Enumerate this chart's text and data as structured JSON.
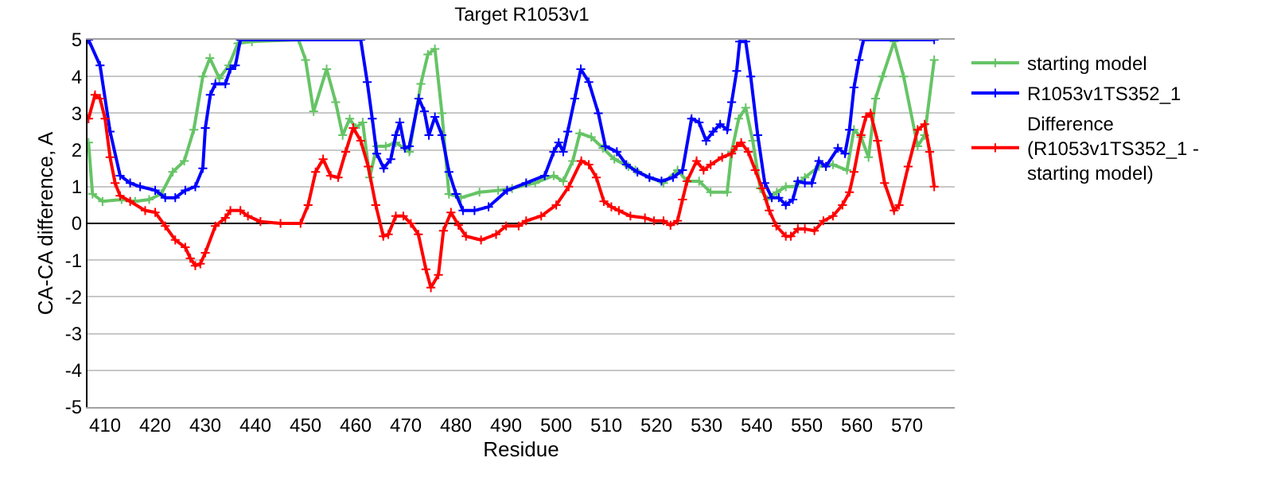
{
  "chart_data": {
    "type": "line",
    "title": "Target R1053v1",
    "xlabel": "Residue",
    "ylabel": "CA-CA difference, A",
    "xlim": [
      406.5,
      579.5
    ],
    "xticks": [
      410,
      420,
      430,
      440,
      450,
      460,
      470,
      480,
      490,
      500,
      510,
      520,
      530,
      540,
      550,
      560,
      570
    ],
    "ylim": [
      -5,
      5
    ],
    "yticks": [
      -5,
      -4,
      -3,
      -2,
      -1,
      0,
      1,
      2,
      3,
      4,
      5
    ],
    "grid": "y",
    "legend": "right",
    "marker": "cross",
    "line_style": "solid",
    "series": [
      {
        "name": "starting model",
        "color": "#66c466",
        "x": [
          406.7,
          407.5,
          409.5,
          413.3,
          416,
          418.8,
          421.2,
          423.5,
          425.8,
          427.7,
          429.5,
          430.9,
          432.8,
          434.7,
          436.5,
          439.3,
          448.6,
          450,
          451.6,
          454.2,
          456,
          457.4,
          458.8,
          460,
          461.4,
          462.8,
          464.2,
          466,
          468,
          470.7,
          473,
          474.4,
          475.8,
          477.2,
          478.6,
          481,
          484.7,
          488.4,
          491.2,
          495.8,
          499.5,
          501.4,
          503.3,
          504.7,
          507,
          509.3,
          511.6,
          514.4,
          515.8,
          518.6,
          521.4,
          524.2,
          526.1,
          528.5,
          530.8,
          534.1,
          535,
          536.4,
          537.8,
          539.2,
          540.7,
          542.1,
          544,
          545.8,
          547.7,
          549.6,
          552.4,
          555.2,
          558,
          559.4,
          560.8,
          562.3,
          563.7,
          565.1,
          567.4,
          569.3,
          572.1,
          573.5,
          575.4
        ],
        "values": [
          2.2,
          0.8,
          0.6,
          0.65,
          0.6,
          0.65,
          0.8,
          1.4,
          1.7,
          2.55,
          4.0,
          4.5,
          3.95,
          4.3,
          4.9,
          4.95,
          5.0,
          4.45,
          3.05,
          4.2,
          3.3,
          2.4,
          2.85,
          2.6,
          2.75,
          1.25,
          2.1,
          2.1,
          2.2,
          1.95,
          3.8,
          4.6,
          4.75,
          3.0,
          0.8,
          0.7,
          0.85,
          0.9,
          0.95,
          1.1,
          1.3,
          1.15,
          1.7,
          2.45,
          2.35,
          2.05,
          1.75,
          1.55,
          1.45,
          1.25,
          1.1,
          1.45,
          1.15,
          1.15,
          0.85,
          0.85,
          1.95,
          2.85,
          3.15,
          2.25,
          0.95,
          0.65,
          0.85,
          1.0,
          1.0,
          1.25,
          1.55,
          1.6,
          1.45,
          2.55,
          2.35,
          1.8,
          3.4,
          4.0,
          4.95,
          4.0,
          2.1,
          2.4,
          4.45
        ]
      },
      {
        "name": "R1053v1TS352_1",
        "color": "#0000ff",
        "x": [
          406.7,
          409,
          411,
          413,
          415,
          417,
          420,
          422,
          424,
          426,
          428,
          429.5,
          430,
          431,
          432,
          434,
          435,
          436,
          437,
          461,
          462.3,
          463.3,
          464.2,
          465.6,
          467,
          468,
          468.8,
          469.8,
          470.7,
          472.6,
          473.7,
          474.6,
          475.8,
          477.2,
          478.6,
          480,
          481.4,
          483.7,
          486.5,
          490.2,
          494,
          497.7,
          499.5,
          500.5,
          501.4,
          502.3,
          503.7,
          504.9,
          506.5,
          508.4,
          509.8,
          512.1,
          514,
          516.2,
          518.6,
          521,
          523.3,
          525.2,
          527,
          528.5,
          529.9,
          531.3,
          532.7,
          534.1,
          535,
          536,
          536.6,
          537.8,
          538.8,
          540.2,
          541.6,
          543,
          544.4,
          545.8,
          547.2,
          548.2,
          549.6,
          551,
          552.4,
          553.8,
          556.2,
          557.6,
          558.5,
          559.4,
          560.4,
          561.3,
          575.4
        ],
        "values": [
          5.0,
          4.3,
          2.5,
          1.3,
          1.1,
          1.0,
          0.9,
          0.7,
          0.7,
          0.9,
          1.0,
          1.5,
          2.6,
          3.5,
          3.8,
          3.8,
          4.2,
          4.3,
          5.0,
          5.0,
          3.85,
          2.85,
          1.9,
          1.5,
          1.75,
          2.4,
          2.75,
          2.05,
          2.1,
          3.4,
          3.05,
          2.4,
          2.9,
          2.4,
          1.4,
          0.8,
          0.35,
          0.35,
          0.45,
          0.9,
          1.1,
          1.3,
          1.95,
          2.2,
          1.95,
          2.5,
          3.4,
          4.2,
          3.85,
          3.0,
          2.1,
          1.95,
          1.6,
          1.4,
          1.25,
          1.15,
          1.25,
          1.45,
          2.85,
          2.75,
          2.25,
          2.5,
          2.7,
          2.55,
          3.3,
          4.15,
          4.95,
          4.95,
          4.0,
          2.4,
          1.1,
          0.7,
          0.7,
          0.5,
          0.65,
          1.15,
          1.1,
          1.1,
          1.7,
          1.55,
          2.05,
          1.9,
          2.55,
          3.7,
          4.45,
          5.0,
          5.0
        ]
      },
      {
        "name": "Difference\n(R1053v1TS352_1 -\nstarting model)",
        "color": "#ff0000",
        "x": [
          406.7,
          408,
          409,
          410,
          411,
          412,
          413,
          415,
          418,
          420,
          422,
          424,
          426,
          427,
          428,
          429,
          430,
          432,
          434,
          435,
          437,
          438.5,
          441,
          445,
          449,
          450.5,
          452,
          453.5,
          455,
          456.5,
          458,
          459.5,
          461,
          462.5,
          464,
          465.5,
          466.5,
          468,
          469.5,
          471,
          472.5,
          474,
          475,
          476.5,
          477.5,
          479,
          480.5,
          482,
          485,
          488,
          490,
          492.5,
          494,
          497,
          500,
          502.5,
          505,
          506.5,
          508,
          509.5,
          511,
          512.5,
          514.8,
          517.7,
          519.5,
          521.4,
          522.8,
          524.2,
          525.2,
          526.1,
          528,
          529.4,
          530.8,
          533.1,
          535,
          536,
          536.9,
          538.3,
          539.7,
          541.1,
          542.5,
          543.9,
          545.8,
          546.8,
          548.2,
          549.6,
          551.5,
          553.3,
          555.2,
          557.1,
          558.5,
          559.4,
          560.8,
          561.8,
          562.7,
          564.1,
          565.5,
          567.4,
          568.4,
          570.2,
          572.1,
          573.5,
          574.5,
          575.4
        ],
        "values": [
          2.85,
          3.5,
          3.4,
          2.85,
          1.8,
          1.1,
          0.75,
          0.6,
          0.35,
          0.3,
          -0.07,
          -0.45,
          -0.65,
          -0.95,
          -1.15,
          -1.1,
          -0.8,
          -0.07,
          0.15,
          0.35,
          0.35,
          0.2,
          0.05,
          0,
          0,
          0.5,
          1.4,
          1.75,
          1.3,
          1.25,
          1.95,
          2.6,
          2.25,
          1.55,
          0.5,
          -0.35,
          -0.3,
          0.2,
          0.2,
          0,
          -0.3,
          -1.25,
          -1.75,
          -1.4,
          -0.2,
          0.3,
          -0.05,
          -0.35,
          -0.45,
          -0.3,
          -0.07,
          -0.07,
          0.07,
          0.2,
          0.5,
          1.0,
          1.7,
          1.6,
          1.25,
          0.6,
          0.45,
          0.35,
          0.2,
          0.15,
          0.07,
          0.07,
          -0.05,
          0.07,
          0.65,
          1.15,
          1.7,
          1.45,
          1.6,
          1.8,
          1.9,
          2.1,
          2.2,
          1.95,
          1.45,
          0.95,
          0.35,
          -0.07,
          -0.35,
          -0.35,
          -0.15,
          -0.15,
          -0.2,
          0.07,
          0.2,
          0.5,
          0.85,
          1.4,
          2.4,
          2.9,
          3.0,
          2.25,
          1.1,
          0.35,
          0.5,
          1.55,
          2.55,
          2.7,
          1.95,
          1.0
        ]
      }
    ]
  }
}
